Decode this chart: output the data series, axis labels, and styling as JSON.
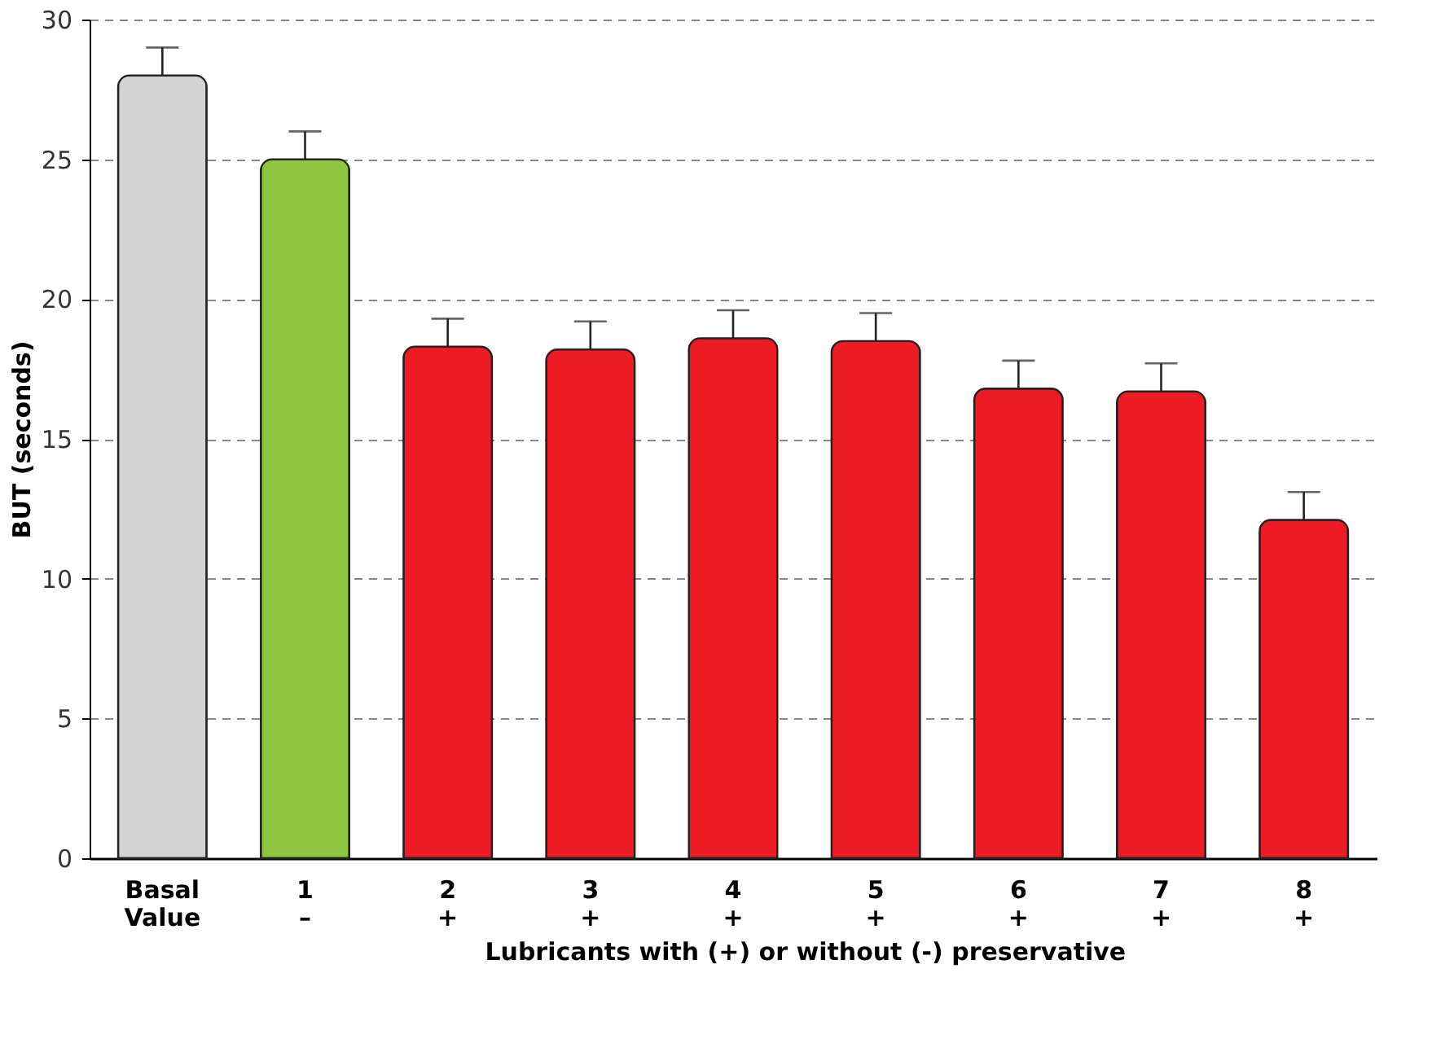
{
  "chart_data": {
    "type": "bar",
    "ylabel": "BUT (seconds)",
    "xlabel": "Lubricants with (+) or without (-) preservative",
    "categories": [
      "Basal\nValue",
      "1\n–",
      "2\n+",
      "3\n+",
      "4\n+",
      "5\n+",
      "6\n+",
      "7\n+",
      "8\n+"
    ],
    "values": [
      28,
      25,
      18.3,
      18.2,
      18.6,
      18.5,
      16.8,
      16.7,
      12.1
    ],
    "errors": [
      [
        28,
        29
      ],
      [
        25,
        26
      ],
      [
        18.3,
        19.3
      ],
      [
        18.2,
        19.2
      ],
      [
        18.6,
        19.6
      ],
      [
        18.5,
        19.5
      ],
      [
        16.8,
        17.8
      ],
      [
        16.7,
        17.7
      ],
      [
        12.1,
        13.1
      ]
    ],
    "colors": [
      "#d1d3d4",
      "#8dc63f",
      "#ed1c24",
      "#ed1c24",
      "#ed1c24",
      "#ed1c24",
      "#ed1c24",
      "#ed1c24",
      "#ed1c24"
    ],
    "ylim": [
      0,
      30
    ],
    "yticks": [
      0,
      5,
      10,
      15,
      20,
      25,
      30
    ],
    "grid": "y"
  }
}
